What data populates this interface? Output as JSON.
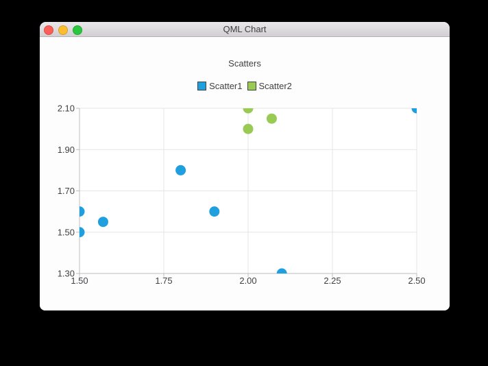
{
  "window": {
    "title": "QML Chart",
    "controls": {
      "close_color": "#fb5f57",
      "minimize_color": "#fcbd2f",
      "zoom_color": "#2ac63d"
    }
  },
  "chart_data": {
    "type": "scatter",
    "title": "Scatters",
    "legend_position": "top",
    "grid": true,
    "xlim": [
      1.5,
      2.5
    ],
    "ylim": [
      1.3,
      2.1
    ],
    "x_tick_values": [
      1.5,
      1.75,
      2.0,
      2.25,
      2.5
    ],
    "x_tick_labels": [
      "1.50",
      "1.75",
      "2.00",
      "2.25",
      "2.50"
    ],
    "y_tick_values": [
      1.3,
      1.5,
      1.7,
      1.9,
      2.1
    ],
    "y_tick_labels": [
      "1.30",
      "1.50",
      "1.70",
      "1.90",
      "2.10"
    ],
    "marker_size": 15,
    "colors": {
      "plot_background": "#ffffff",
      "grid": "#e5e5e5",
      "axis": "#bdbdbd",
      "label": "#404044",
      "legend_marker_border": "#404244"
    },
    "series": [
      {
        "name": "Scatter1",
        "color": "#209fdf",
        "points": [
          [
            1.5,
            1.5
          ],
          [
            1.5,
            1.6
          ],
          [
            1.57,
            1.55
          ],
          [
            1.8,
            1.8
          ],
          [
            1.9,
            1.6
          ],
          [
            2.1,
            1.3
          ],
          [
            2.5,
            2.1
          ]
        ]
      },
      {
        "name": "Scatter2",
        "color": "#99ca53",
        "points": [
          [
            2.0,
            2.0
          ],
          [
            2.0,
            2.1
          ],
          [
            2.07,
            2.05
          ]
        ]
      }
    ]
  }
}
